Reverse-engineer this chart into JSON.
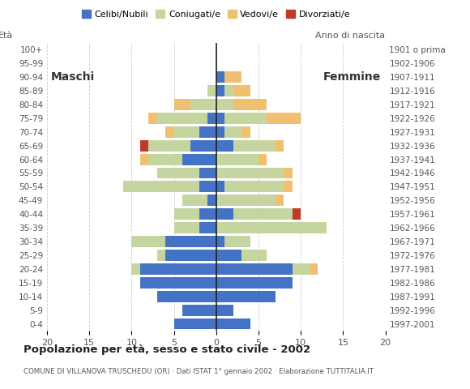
{
  "age_groups": [
    "0-4",
    "5-9",
    "10-14",
    "15-19",
    "20-24",
    "25-29",
    "30-34",
    "35-39",
    "40-44",
    "45-49",
    "50-54",
    "55-59",
    "60-64",
    "65-69",
    "70-74",
    "75-79",
    "80-84",
    "85-89",
    "90-94",
    "95-99",
    "100+"
  ],
  "birth_years": [
    "1997-2001",
    "1992-1996",
    "1987-1991",
    "1982-1986",
    "1977-1981",
    "1972-1976",
    "1967-1971",
    "1962-1966",
    "1957-1961",
    "1952-1956",
    "1947-1951",
    "1942-1946",
    "1937-1941",
    "1932-1936",
    "1927-1931",
    "1922-1926",
    "1917-1921",
    "1912-1916",
    "1907-1911",
    "1902-1906",
    "1901 o prima"
  ],
  "male": {
    "celibe": [
      5,
      4,
      7,
      9,
      9,
      6,
      6,
      2,
      2,
      1,
      2,
      2,
      4,
      3,
      2,
      1,
      0,
      0,
      0,
      0,
      0
    ],
    "coniugato": [
      0,
      0,
      0,
      0,
      1,
      1,
      4,
      3,
      3,
      3,
      9,
      5,
      4,
      5,
      3,
      6,
      3,
      1,
      0,
      0,
      0
    ],
    "vedovo": [
      0,
      0,
      0,
      0,
      0,
      0,
      0,
      0,
      0,
      0,
      0,
      0,
      1,
      0,
      1,
      1,
      2,
      0,
      0,
      0,
      0
    ],
    "divorziato": [
      0,
      0,
      0,
      0,
      0,
      0,
      0,
      0,
      0,
      0,
      0,
      0,
      0,
      1,
      0,
      0,
      0,
      0,
      0,
      0,
      0
    ]
  },
  "female": {
    "celibe": [
      4,
      2,
      7,
      9,
      9,
      3,
      1,
      0,
      2,
      0,
      1,
      0,
      0,
      2,
      1,
      1,
      0,
      1,
      1,
      0,
      0
    ],
    "coniugato": [
      0,
      0,
      0,
      0,
      2,
      3,
      3,
      13,
      7,
      7,
      7,
      8,
      5,
      5,
      2,
      5,
      2,
      1,
      0,
      0,
      0
    ],
    "vedovo": [
      0,
      0,
      0,
      0,
      1,
      0,
      0,
      0,
      0,
      1,
      1,
      1,
      1,
      1,
      1,
      4,
      4,
      2,
      2,
      0,
      0
    ],
    "divorziato": [
      0,
      0,
      0,
      0,
      0,
      0,
      0,
      0,
      1,
      0,
      0,
      0,
      0,
      0,
      0,
      0,
      0,
      0,
      0,
      0,
      0
    ]
  },
  "colors": {
    "celibe": "#4472C4",
    "coniugato": "#C5D5A0",
    "vedovo": "#F0C070",
    "divorziato": "#C0392B"
  },
  "xlim": 20,
  "title": "Popolazione per età, sesso e stato civile - 2002",
  "subtitle": "COMUNE DI VILLANOVA TRUSCHEDU (OR) · Dati ISTAT 1° gennaio 2002 · Elaborazione TUTTITALIA.IT",
  "ylabel_left": "Età",
  "ylabel_right": "Anno di nascita",
  "xlabel_left": "Maschi",
  "xlabel_right": "Femmine",
  "legend_labels": [
    "Celibi/Nubili",
    "Coniugati/e",
    "Vedovi/e",
    "Divorziati/e"
  ],
  "background_color": "#ffffff",
  "grid_color": "#cccccc"
}
